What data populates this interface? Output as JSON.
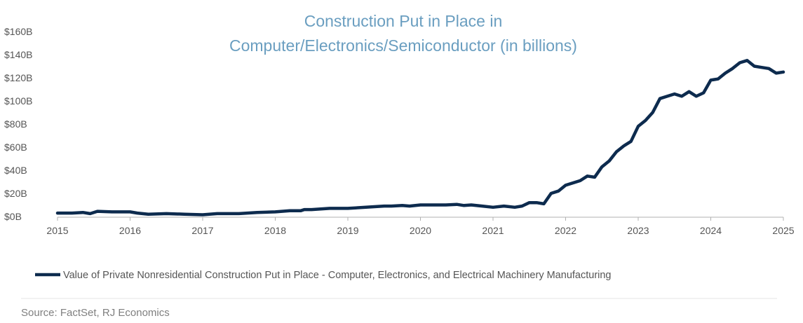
{
  "chart_data": {
    "type": "line",
    "title_lines": [
      "Construction Put in Place in",
      "Computer/Electronics/Semiconductor (in billions)"
    ],
    "xlabel": "",
    "ylabel": "",
    "xlim": [
      2015,
      2025
    ],
    "ylim": [
      0,
      160
    ],
    "x_ticks": [
      2015,
      2016,
      2017,
      2018,
      2019,
      2020,
      2021,
      2022,
      2023,
      2024,
      2025
    ],
    "x_tick_labels": [
      "2015",
      "2016",
      "2017",
      "2018",
      "2019",
      "2020",
      "2021",
      "2022",
      "2023",
      "2024",
      "2025"
    ],
    "y_ticks": [
      0,
      20,
      40,
      60,
      80,
      100,
      120,
      140,
      160
    ],
    "y_tick_labels": [
      "$0B",
      "$20B",
      "$40B",
      "$60B",
      "$80B",
      "$100B",
      "$120B",
      "$140B",
      "$160B"
    ],
    "grid": false,
    "legend_position": "bottom",
    "series": [
      {
        "name": "Value of Private Nonresidential Construction Put in Place - Computer, Electronics, and Electrical Machinery Manufacturing",
        "color": "#0d2b4e",
        "x": [
          2015.0,
          2015.2,
          2015.35,
          2015.45,
          2015.55,
          2015.75,
          2016.0,
          2016.1,
          2016.25,
          2016.5,
          2016.75,
          2017.0,
          2017.2,
          2017.5,
          2017.75,
          2018.0,
          2018.2,
          2018.35,
          2018.4,
          2018.5,
          2018.75,
          2019.0,
          2019.25,
          2019.5,
          2019.6,
          2019.75,
          2019.85,
          2020.0,
          2020.2,
          2020.35,
          2020.5,
          2020.6,
          2020.7,
          2020.85,
          2021.0,
          2021.15,
          2021.3,
          2021.4,
          2021.5,
          2021.6,
          2021.7,
          2021.8,
          2021.9,
          2022.0,
          2022.1,
          2022.2,
          2022.3,
          2022.4,
          2022.5,
          2022.6,
          2022.7,
          2022.8,
          2022.9,
          2023.0,
          2023.1,
          2023.2,
          2023.3,
          2023.4,
          2023.5,
          2023.6,
          2023.7,
          2023.8,
          2023.9,
          2024.0,
          2024.1,
          2024.2,
          2024.3,
          2024.4,
          2024.5,
          2024.6,
          2024.7,
          2024.8,
          2024.9,
          2025.0
        ],
        "values": [
          3,
          3,
          3.5,
          2.5,
          4.5,
          4,
          4,
          3,
          2,
          2.5,
          2,
          1.5,
          2.5,
          2.5,
          3.5,
          4,
          5,
          5,
          6,
          6,
          7,
          7,
          8,
          9,
          9,
          9.5,
          9,
          10,
          10,
          10,
          10.5,
          9.5,
          10,
          9,
          8,
          9,
          8,
          9,
          12,
          12,
          11,
          20,
          22,
          27,
          29,
          31,
          35,
          34,
          43,
          48,
          56,
          61,
          65,
          78,
          83,
          90,
          102,
          104,
          106,
          104,
          108,
          104,
          107,
          118,
          119,
          124,
          128,
          133,
          135,
          130,
          129,
          128,
          124,
          125
        ]
      }
    ],
    "source": "Source: FactSet, RJ Economics"
  },
  "colors": {
    "title": "#6a9ec0",
    "axis": "#b0b0b0",
    "tick_text": "#555555",
    "line": "#0d2b4e",
    "source_text": "#7f7f7f"
  }
}
